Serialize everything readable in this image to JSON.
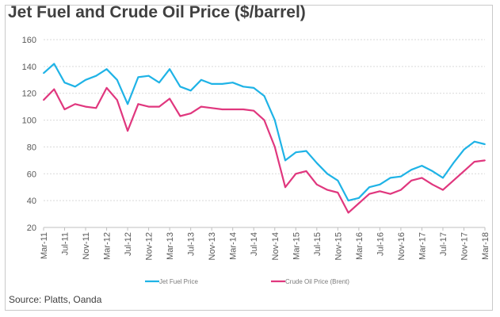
{
  "source_note": "Source: Platts, Oanda",
  "chart_data": {
    "type": "line",
    "title": "Jet Fuel and Crude Oil Price ($/barrel)",
    "xlabel": "",
    "ylabel": "",
    "ylim": [
      20,
      160
    ],
    "yticks": [
      20,
      40,
      60,
      80,
      100,
      120,
      140,
      160
    ],
    "grid": "horizontal dotted",
    "legend_position": "bottom",
    "x_tick_labels": [
      "Mar-11",
      "Jul-11",
      "Nov-11",
      "Mar-12",
      "Jul-12",
      "Nov-12",
      "Mar-13",
      "Jul-13",
      "Nov-13",
      "Mar-14",
      "Jul-14",
      "Nov-14",
      "Mar-15",
      "Jul-15",
      "Nov-15",
      "Mar-16",
      "Jul-16",
      "Nov-16",
      "Mar-17",
      "Jul-17",
      "Nov-17",
      "Mar-18"
    ],
    "x": [
      "Mar-11",
      "May-11",
      "Jul-11",
      "Sep-11",
      "Nov-11",
      "Jan-12",
      "Mar-12",
      "May-12",
      "Jul-12",
      "Sep-12",
      "Nov-12",
      "Jan-13",
      "Mar-13",
      "May-13",
      "Jul-13",
      "Sep-13",
      "Nov-13",
      "Jan-14",
      "Mar-14",
      "May-14",
      "Jul-14",
      "Sep-14",
      "Nov-14",
      "Jan-15",
      "Mar-15",
      "May-15",
      "Jul-15",
      "Sep-15",
      "Nov-15",
      "Jan-16",
      "Mar-16",
      "May-16",
      "Jul-16",
      "Sep-16",
      "Nov-16",
      "Jan-17",
      "Mar-17",
      "May-17",
      "Jul-17",
      "Sep-17",
      "Nov-17",
      "Jan-18",
      "Mar-18"
    ],
    "series": [
      {
        "name": "Jet Fuel Price",
        "color": "#1fb3e6",
        "values": [
          135,
          142,
          128,
          125,
          130,
          133,
          138,
          130,
          112,
          132,
          133,
          128,
          138,
          125,
          122,
          130,
          127,
          127,
          128,
          125,
          124,
          118,
          100,
          70,
          76,
          77,
          68,
          60,
          55,
          40,
          42,
          50,
          52,
          57,
          58,
          63,
          66,
          62,
          57,
          68,
          78,
          84,
          82
        ]
      },
      {
        "name": "Crude Oil Price (Brent)",
        "color": "#e0377e",
        "values": [
          115,
          123,
          108,
          112,
          110,
          109,
          124,
          115,
          92,
          112,
          110,
          110,
          116,
          103,
          105,
          110,
          109,
          108,
          108,
          108,
          107,
          100,
          80,
          50,
          60,
          62,
          52,
          48,
          46,
          31,
          38,
          45,
          47,
          45,
          48,
          55,
          57,
          52,
          48,
          55,
          62,
          69,
          70
        ]
      }
    ]
  }
}
